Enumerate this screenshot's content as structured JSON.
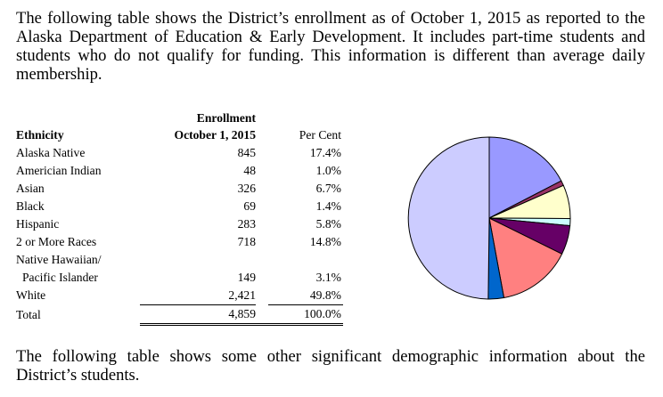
{
  "intro_paragraph": "The following table shows the District’s enrollment as of October 1, 2015 as reported to the Alaska Department of Education & Early Development.  It includes part-time students and students who do not qualify for funding.  This information is different than average daily membership.",
  "closing_paragraph": "The following table shows some other significant demographic information about the District’s students.",
  "table": {
    "header_enrollment_line1": "Enrollment",
    "header_enrollment_line2": "October 1, 2015",
    "header_ethnicity": "Ethnicity",
    "header_percent": "Per Cent",
    "rows": [
      {
        "label": "Alaska Native",
        "count": "845",
        "percent": "17.4%"
      },
      {
        "label": "Americian Indian",
        "count": "48",
        "percent": "1.0%"
      },
      {
        "label": "Asian",
        "count": "326",
        "percent": "6.7%"
      },
      {
        "label": "Black",
        "count": "69",
        "percent": "1.4%"
      },
      {
        "label": "Hispanic",
        "count": "283",
        "percent": "5.8%"
      },
      {
        "label": "2 or More Races",
        "count": "718",
        "percent": "14.8%"
      },
      {
        "label_line1": "Native Hawaiian/",
        "label_line2": "Pacific Islander",
        "count": "149",
        "percent": "3.1%"
      },
      {
        "label": "White",
        "count": "2,421",
        "percent": "49.8%"
      }
    ],
    "total": {
      "label": "Total",
      "count": "4,859",
      "percent": "100.0%"
    }
  },
  "chart_data": {
    "type": "pie",
    "title": "",
    "slices": [
      {
        "name": "Alaska Native",
        "value": 17.4,
        "color": "#9999ff"
      },
      {
        "name": "Americian Indian",
        "value": 1.0,
        "color": "#993366"
      },
      {
        "name": "Asian",
        "value": 6.7,
        "color": "#ffffcc"
      },
      {
        "name": "Black",
        "value": 1.4,
        "color": "#ccffff"
      },
      {
        "name": "Hispanic",
        "value": 5.8,
        "color": "#660066"
      },
      {
        "name": "2 or More Races",
        "value": 14.8,
        "color": "#ff8080"
      },
      {
        "name": "Native Hawaiian/Pacific Islander",
        "value": 3.1,
        "color": "#0066cc"
      },
      {
        "name": "White",
        "value": 49.8,
        "color": "#ccccff"
      }
    ],
    "legend": "none"
  }
}
